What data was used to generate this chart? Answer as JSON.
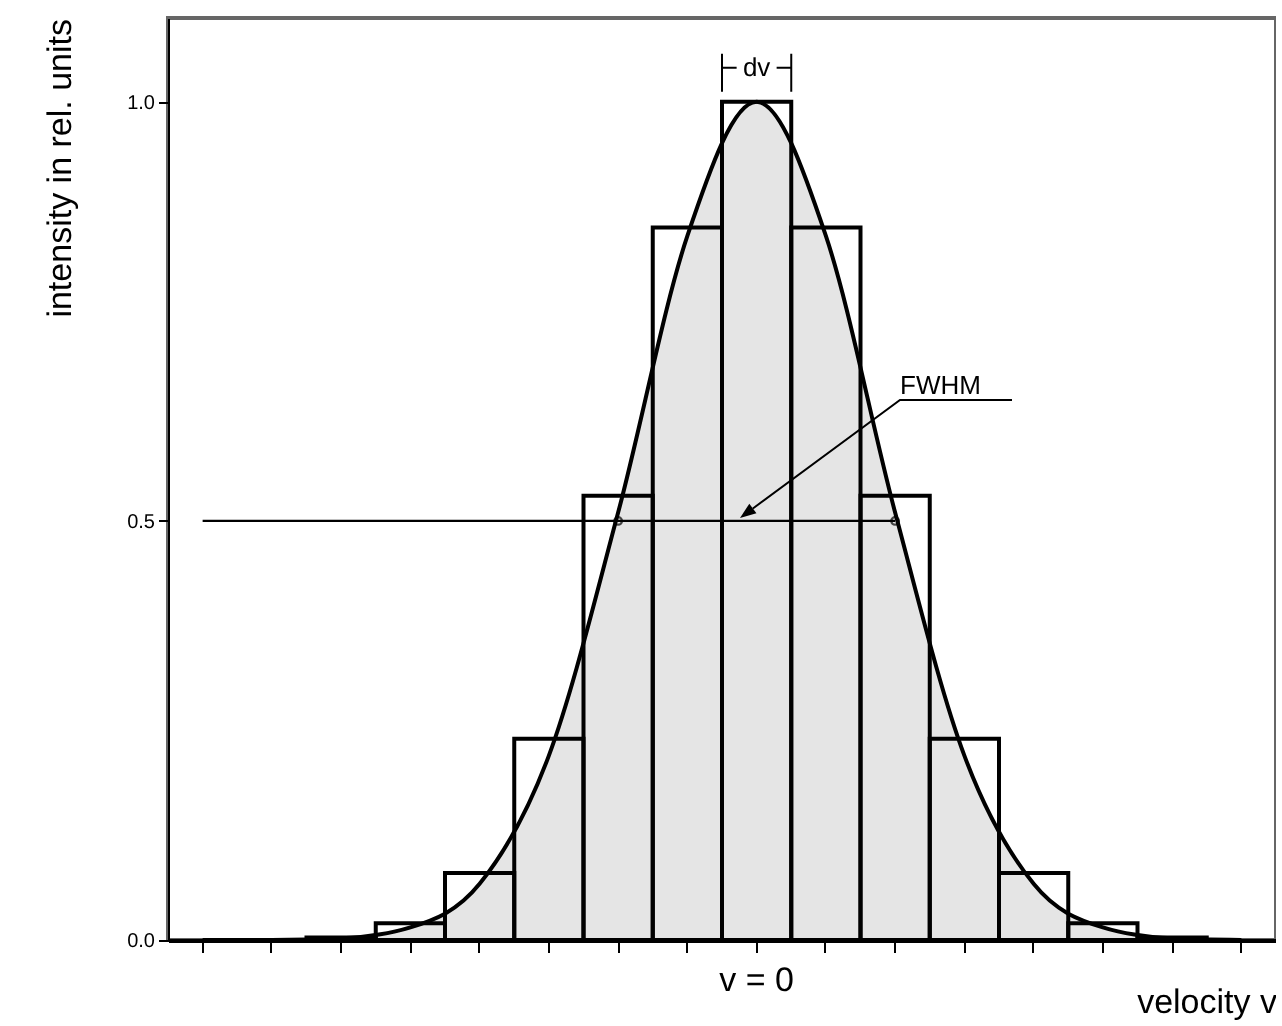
{
  "chart_data": {
    "type": "bar",
    "xlabel": "velocity v",
    "ylabel": "intensity in rel. units",
    "categories": [
      null,
      null,
      null,
      null,
      null,
      null,
      null,
      null,
      "v = 0",
      null,
      null,
      null,
      null,
      null,
      null,
      null
    ],
    "values": [
      null,
      null,
      0.003,
      0.02,
      0.08,
      0.24,
      0.53,
      0.85,
      1.0,
      0.85,
      0.53,
      0.24,
      0.08,
      0.02,
      0.003,
      null
    ],
    "color": "#000000",
    "series": [
      {
        "type": "area",
        "color": "#000000",
        "values": [
          0,
          0,
          0.002,
          0.015,
          0.067,
          0.22,
          0.51,
          0.84,
          1.0,
          0.84,
          0.51,
          0.22,
          0.067,
          0.015,
          0.002,
          0
        ]
      },
      {
        "type": "line",
        "color": "#000000",
        "values": [
          0.5,
          0.5,
          0.5,
          0.5,
          0.5,
          0.5,
          0.5,
          0.5,
          0.5,
          0.5,
          0.5,
          null,
          null,
          null,
          null,
          null
        ]
      },
      {
        "type": "scatter",
        "color": "#000000",
        "marker": "circle",
        "values": [
          null,
          null,
          null,
          null,
          null,
          null,
          0.5,
          null,
          null,
          null,
          0.5,
          null,
          null,
          null,
          null,
          null
        ]
      }
    ],
    "annotations": [
      {
        "text": "dv",
        "x": "v = 0",
        "y": 1.0
      },
      "FWHM"
    ],
    "ylim": [
      0,
      1.1
    ],
    "yticks": [
      {
        "value": 0,
        "label": "0.0"
      },
      {
        "value": 0.5,
        "label": "0.5"
      },
      {
        "value": 1,
        "label": "1.0"
      }
    ]
  }
}
